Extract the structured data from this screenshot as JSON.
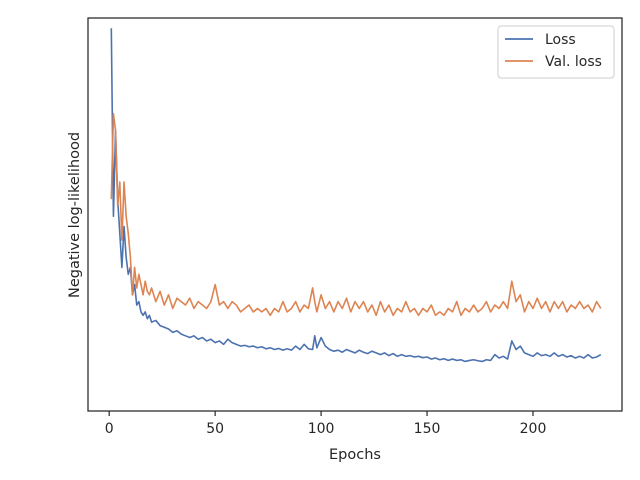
{
  "chart_data": {
    "type": "line",
    "title": "",
    "xlabel": "Epochs",
    "ylabel": "Negative log-likelihood",
    "xlim": [
      -10,
      242
    ],
    "ylim": [
      0,
      1
    ],
    "x_ticks": [
      0,
      50,
      100,
      150,
      200
    ],
    "y_ticks": [],
    "grid": false,
    "legend": "top-right",
    "series": [
      {
        "name": "Loss",
        "color": "#4c72b0",
        "x": [
          1,
          2,
          3,
          4,
          5,
          6,
          7,
          8,
          9,
          10,
          11,
          12,
          13,
          14,
          15,
          16,
          17,
          18,
          19,
          20,
          22,
          24,
          26,
          28,
          30,
          32,
          34,
          36,
          38,
          40,
          42,
          44,
          46,
          48,
          50,
          52,
          54,
          56,
          58,
          60,
          62,
          64,
          66,
          68,
          70,
          72,
          74,
          76,
          78,
          80,
          82,
          84,
          86,
          88,
          90,
          92,
          94,
          96,
          97,
          98,
          100,
          102,
          104,
          106,
          108,
          110,
          112,
          114,
          116,
          118,
          120,
          122,
          124,
          126,
          128,
          130,
          132,
          134,
          136,
          138,
          140,
          142,
          144,
          146,
          148,
          150,
          152,
          154,
          156,
          158,
          160,
          162,
          164,
          166,
          168,
          170,
          172,
          174,
          176,
          178,
          180,
          182,
          184,
          186,
          188,
          190,
          192,
          194,
          196,
          198,
          200,
          202,
          204,
          206,
          208,
          210,
          212,
          214,
          216,
          218,
          220,
          222,
          224,
          226,
          228,
          230,
          232
        ],
        "values": [
          1.0,
          0.45,
          0.7,
          0.5,
          0.4,
          0.3,
          0.42,
          0.33,
          0.28,
          0.3,
          0.22,
          0.25,
          0.19,
          0.2,
          0.17,
          0.16,
          0.17,
          0.15,
          0.16,
          0.14,
          0.145,
          0.13,
          0.125,
          0.12,
          0.11,
          0.115,
          0.105,
          0.1,
          0.095,
          0.1,
          0.09,
          0.095,
          0.085,
          0.09,
          0.08,
          0.085,
          0.075,
          0.09,
          0.08,
          0.075,
          0.07,
          0.072,
          0.068,
          0.07,
          0.065,
          0.068,
          0.062,
          0.065,
          0.06,
          0.063,
          0.058,
          0.062,
          0.058,
          0.07,
          0.06,
          0.075,
          0.062,
          0.06,
          0.1,
          0.065,
          0.095,
          0.07,
          0.06,
          0.055,
          0.058,
          0.052,
          0.06,
          0.055,
          0.05,
          0.058,
          0.052,
          0.048,
          0.055,
          0.05,
          0.045,
          0.05,
          0.042,
          0.048,
          0.04,
          0.045,
          0.04,
          0.042,
          0.038,
          0.04,
          0.036,
          0.038,
          0.032,
          0.035,
          0.03,
          0.033,
          0.028,
          0.032,
          0.028,
          0.03,
          0.025,
          0.028,
          0.03,
          0.027,
          0.025,
          0.03,
          0.028,
          0.045,
          0.035,
          0.04,
          0.032,
          0.085,
          0.06,
          0.07,
          0.05,
          0.045,
          0.04,
          0.05,
          0.042,
          0.045,
          0.04,
          0.05,
          0.04,
          0.045,
          0.038,
          0.042,
          0.035,
          0.04,
          0.035,
          0.045,
          0.035,
          0.038,
          0.045
        ]
      },
      {
        "name": "Val. loss",
        "color": "#dd8452",
        "x": [
          1,
          2,
          3,
          4,
          5,
          6,
          7,
          8,
          9,
          10,
          11,
          12,
          13,
          14,
          15,
          16,
          17,
          18,
          19,
          20,
          22,
          24,
          26,
          28,
          30,
          32,
          34,
          36,
          38,
          40,
          42,
          44,
          46,
          48,
          50,
          52,
          54,
          56,
          58,
          60,
          62,
          64,
          66,
          68,
          70,
          72,
          74,
          76,
          78,
          80,
          82,
          84,
          86,
          88,
          90,
          92,
          94,
          96,
          97,
          98,
          100,
          102,
          104,
          106,
          108,
          110,
          112,
          114,
          116,
          118,
          120,
          122,
          124,
          126,
          128,
          130,
          132,
          134,
          136,
          138,
          140,
          142,
          144,
          146,
          148,
          150,
          152,
          154,
          156,
          158,
          160,
          162,
          164,
          166,
          168,
          170,
          172,
          174,
          176,
          178,
          180,
          182,
          184,
          186,
          188,
          190,
          192,
          194,
          196,
          198,
          200,
          202,
          204,
          206,
          208,
          210,
          212,
          214,
          216,
          218,
          220,
          222,
          224,
          226,
          228,
          230,
          232
        ],
        "values": [
          0.5,
          0.75,
          0.7,
          0.48,
          0.55,
          0.38,
          0.55,
          0.45,
          0.4,
          0.33,
          0.22,
          0.3,
          0.24,
          0.28,
          0.25,
          0.22,
          0.26,
          0.23,
          0.22,
          0.24,
          0.2,
          0.23,
          0.19,
          0.22,
          0.18,
          0.21,
          0.2,
          0.19,
          0.21,
          0.18,
          0.2,
          0.19,
          0.18,
          0.2,
          0.25,
          0.19,
          0.2,
          0.18,
          0.2,
          0.19,
          0.17,
          0.18,
          0.19,
          0.17,
          0.18,
          0.17,
          0.18,
          0.16,
          0.18,
          0.17,
          0.2,
          0.17,
          0.18,
          0.2,
          0.17,
          0.19,
          0.18,
          0.24,
          0.2,
          0.17,
          0.22,
          0.18,
          0.2,
          0.17,
          0.2,
          0.18,
          0.21,
          0.17,
          0.2,
          0.18,
          0.2,
          0.17,
          0.19,
          0.16,
          0.2,
          0.17,
          0.19,
          0.16,
          0.18,
          0.17,
          0.2,
          0.17,
          0.18,
          0.16,
          0.18,
          0.17,
          0.19,
          0.16,
          0.17,
          0.16,
          0.18,
          0.17,
          0.2,
          0.16,
          0.18,
          0.17,
          0.19,
          0.17,
          0.18,
          0.2,
          0.17,
          0.19,
          0.18,
          0.2,
          0.18,
          0.26,
          0.2,
          0.22,
          0.17,
          0.2,
          0.18,
          0.21,
          0.18,
          0.2,
          0.17,
          0.2,
          0.18,
          0.2,
          0.17,
          0.19,
          0.18,
          0.2,
          0.18,
          0.19,
          0.17,
          0.2,
          0.18
        ]
      }
    ]
  }
}
